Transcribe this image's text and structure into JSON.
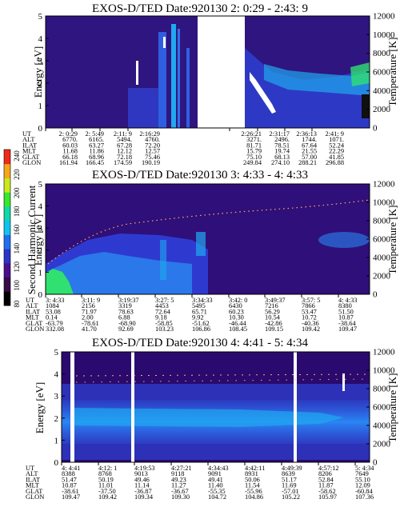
{
  "colors": {
    "background": "#2a0a6e",
    "mid": "#2a6ef0",
    "bright": "#18d0f0",
    "hot": "#30f070",
    "dots": "#ffaa66"
  },
  "colorbar": {
    "label": "Second Harmonic Current",
    "ticks": [
      "80",
      "100",
      "120",
      "140",
      "160",
      "180",
      "200",
      "220",
      "240"
    ],
    "colors": [
      "#000000",
      "#3a0a4a",
      "#4c0f8c",
      "#2d34c8",
      "#1f6ff0",
      "#12c2f0",
      "#10d8a8",
      "#38e82c",
      "#c8ea1a",
      "#f5a61a",
      "#ee2a1a"
    ]
  },
  "chart_data": [
    {
      "type": "heatmap",
      "title": "EXOS-D/TED   Date:920130  2: 0:29 - 2:43: 9",
      "ylabel": "Energy [eV]",
      "ylabel_right": "Temperature [K]",
      "ylim": [
        0,
        5
      ],
      "ylim_right": [
        0,
        12000
      ],
      "yticks": [
        "0",
        "1",
        "2",
        "3",
        "4",
        "5"
      ],
      "yticks_right": [
        "0",
        "2000",
        "4000",
        "6000",
        "8000",
        "10000",
        "12000"
      ],
      "gap": [
        0.34,
        0.56
      ],
      "orbit_labels": [
        "UT",
        "ALT",
        "ILAT",
        "MLT",
        "GLAT",
        "GLON"
      ],
      "orbit": [
        [
          "2: 0:29",
          "6770.",
          "60.03",
          "11.68",
          "66.18",
          "161.94"
        ],
        [
          "2: 5:49",
          "6165.",
          "63.27",
          "11.86",
          "68.96",
          "166.45"
        ],
        [
          "2:11: 9",
          "5494.",
          "67.28",
          "12.12",
          "72.18",
          "174.59"
        ],
        [
          "2:16:29",
          "4760.",
          "72.20",
          "12.57",
          "75.46",
          "190.19"
        ],
        [
          "2:26:21",
          "3271.",
          "81.71",
          "15.79",
          "75.10",
          "249.84"
        ],
        [
          "2:31:17",
          "2496.",
          "78.51",
          "19.74",
          "68.13",
          "274.10"
        ],
        [
          "2:36:13",
          "1744.",
          "67.64",
          "21.55",
          "57.00",
          "288.21"
        ],
        [
          "2:41: 9",
          "1071.",
          "52.24",
          "22.29",
          "41.85",
          "296.88"
        ]
      ]
    },
    {
      "type": "heatmap",
      "title": "EXOS-D/TED   Date:920130  3: 4:33 - 4: 4:33",
      "ylabel": "Energy [eV]",
      "ylabel_right": "Temperature [K]",
      "ylim": [
        0,
        5
      ],
      "ylim_right": [
        0,
        12000
      ],
      "yticks": [
        "0",
        "1",
        "2",
        "3",
        "4",
        "5"
      ],
      "yticks_right": [
        "0",
        "2000",
        "4000",
        "6000",
        "8000",
        "10000",
        "12000"
      ],
      "orbit_labels": [
        "UT",
        "ALT",
        "ILAT",
        "MLT",
        "GLAT",
        "GLON"
      ],
      "orbit": [
        [
          "3: 4:33",
          "1084",
          "53.08",
          "0.14",
          "-63.79",
          "332.08"
        ],
        [
          "3:11: 9",
          "2156",
          "71.97",
          "2.00",
          "-78.61",
          "41.70"
        ],
        [
          "3:19:37",
          "3319",
          "78.63",
          "6.88",
          "-68.90",
          "92.69"
        ],
        [
          "3:27: 5",
          "4453",
          "72.64",
          "9.18",
          "-58.85",
          "103.23"
        ],
        [
          "3:34:33",
          "5495",
          "65.71",
          "9.92",
          "-51.62",
          "106.86"
        ],
        [
          "3:42: 0",
          "6430",
          "60.23",
          "10.30",
          "-46.44",
          "108.45"
        ],
        [
          "3:49:37",
          "7216",
          "56.29",
          "10.54",
          "-42.86",
          "109.15"
        ],
        [
          "3:57: 5",
          "7866",
          "53.47",
          "10.72",
          "-40.36",
          "109.42"
        ],
        [
          "4: 4:33",
          "8380",
          "51.50",
          "10.87",
          "-38.64",
          "109.47"
        ]
      ]
    },
    {
      "type": "heatmap",
      "title": "EXOS-D/TED   Date:920130  4: 4:41 - 5: 4:34",
      "ylabel": "Energy [eV]",
      "ylabel_right": "Temperature [K]",
      "ylim": [
        0,
        5
      ],
      "ylim_right": [
        0,
        12000
      ],
      "yticks": [
        "0",
        "1",
        "2",
        "3",
        "4",
        "5"
      ],
      "yticks_right": [
        "0",
        "2000",
        "4000",
        "6000",
        "8000",
        "10000",
        "12000"
      ],
      "orbit_labels": [
        "UT",
        "ALT",
        "ILAT",
        "MLT",
        "GLAT",
        "GLON"
      ],
      "orbit": [
        [
          "4: 4:41",
          "8388",
          "51.47",
          "10.87",
          "-38.61",
          "109.47"
        ],
        [
          "4:12: 1",
          "8768",
          "50.19",
          "11.01",
          "-37.50",
          "109.42"
        ],
        [
          "4:19:53",
          "9013",
          "49.46",
          "11.14",
          "-36.87",
          "109.34"
        ],
        [
          "4:27:21",
          "9118",
          "49.23",
          "11.27",
          "-36.67",
          "109.30"
        ],
        [
          "4:34:43",
          "9091",
          "49.41",
          "11.40",
          "-55.35",
          "104.72"
        ],
        [
          "4:42:11",
          "8931",
          "50.06",
          "11.54",
          "-55.96",
          "104.86"
        ],
        [
          "4:49:39",
          "8639",
          "51.17",
          "11.69",
          "-57.01",
          "105.22"
        ],
        [
          "4:57:12",
          "8206",
          "52.84",
          "11.87",
          "-58.62",
          "105.97"
        ],
        [
          "5: 4:34",
          "7649",
          "55.10",
          "12.09",
          "-60.84",
          "107.36"
        ]
      ]
    }
  ]
}
